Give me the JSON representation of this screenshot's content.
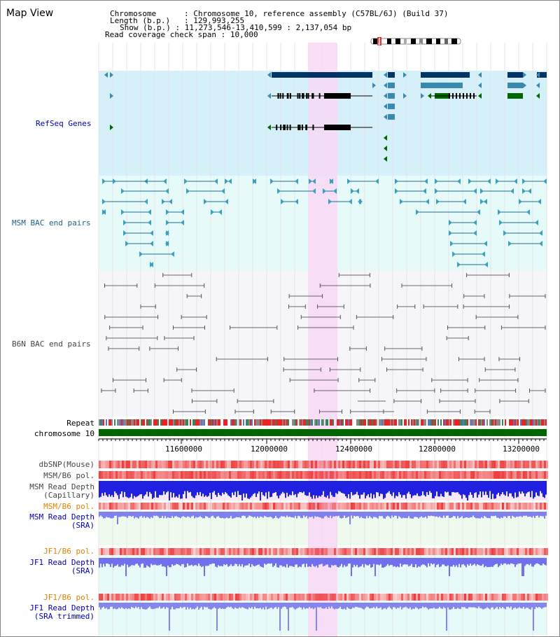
{
  "view_title": "Map View",
  "info": {
    "chromosome_key": "Chromosome",
    "chromosome_val": "Chromosome 10, reference assembly (C57BL/6J) (Build 37)",
    "length_key": "Length (b.p.)",
    "length_val": "129,993,255",
    "show_key": "Show (b.p.)",
    "show_val": "11,273,546-13,410,599 : 2,137,054 bp",
    "coverage_key": "Read coverage check span",
    "coverage_val": "10,000"
  },
  "tracks": {
    "refseq": "RefSeq Genes",
    "msm_bac": "MSM BAC end pairs",
    "b6n_bac": "B6N BAC end pairs",
    "repeat": "Repeat",
    "chromosome": "chromosome 10",
    "dbsnp": "dbSNP(Mouse)",
    "msm_b6_pol_1": "MSM/B6 pol.",
    "msm_depth_cap_1": "MSM Read Depth",
    "msm_depth_cap_2": "(Capillary)",
    "msm_b6_pol_2": "MSM/B6 pol.",
    "msm_depth_sra_1": "MSM Read Depth",
    "msm_depth_sra_2": "(SRA)",
    "jf1_b6_pol_1": "JF1/B6 pol.",
    "jf1_depth_sra_1": "JF1 Read Depth",
    "jf1_depth_sra_2": "(SRA)",
    "jf1_b6_pol_2": "JF1/B6 pol.",
    "jf1_depth_trim_1": "JF1 Read Depth",
    "jf1_depth_trim_2": "(SRA trimmed)"
  },
  "axis": {
    "ticks": [
      "11600000",
      "12000000",
      "12400000",
      "12800000",
      "13200000"
    ]
  },
  "colors": {
    "refseq_bg": "#d6f0fa",
    "msm_bg": "#e6fafa",
    "b6n_bg": "#f5f5fa",
    "highlight": "#f8d8f4",
    "gene_dark": "#003366",
    "gene_mid": "#3a8ab0",
    "gene_green": "#006600",
    "msm_line": "#1f6f8f",
    "b6n_line": "#666666",
    "chrom_green": "#006600",
    "depth_blue": "#2020e0",
    "depth_light": "#7070ee",
    "pol_red": "#ee4444",
    "orange_label": "#e08000",
    "blue_label": "#0000aa"
  }
}
